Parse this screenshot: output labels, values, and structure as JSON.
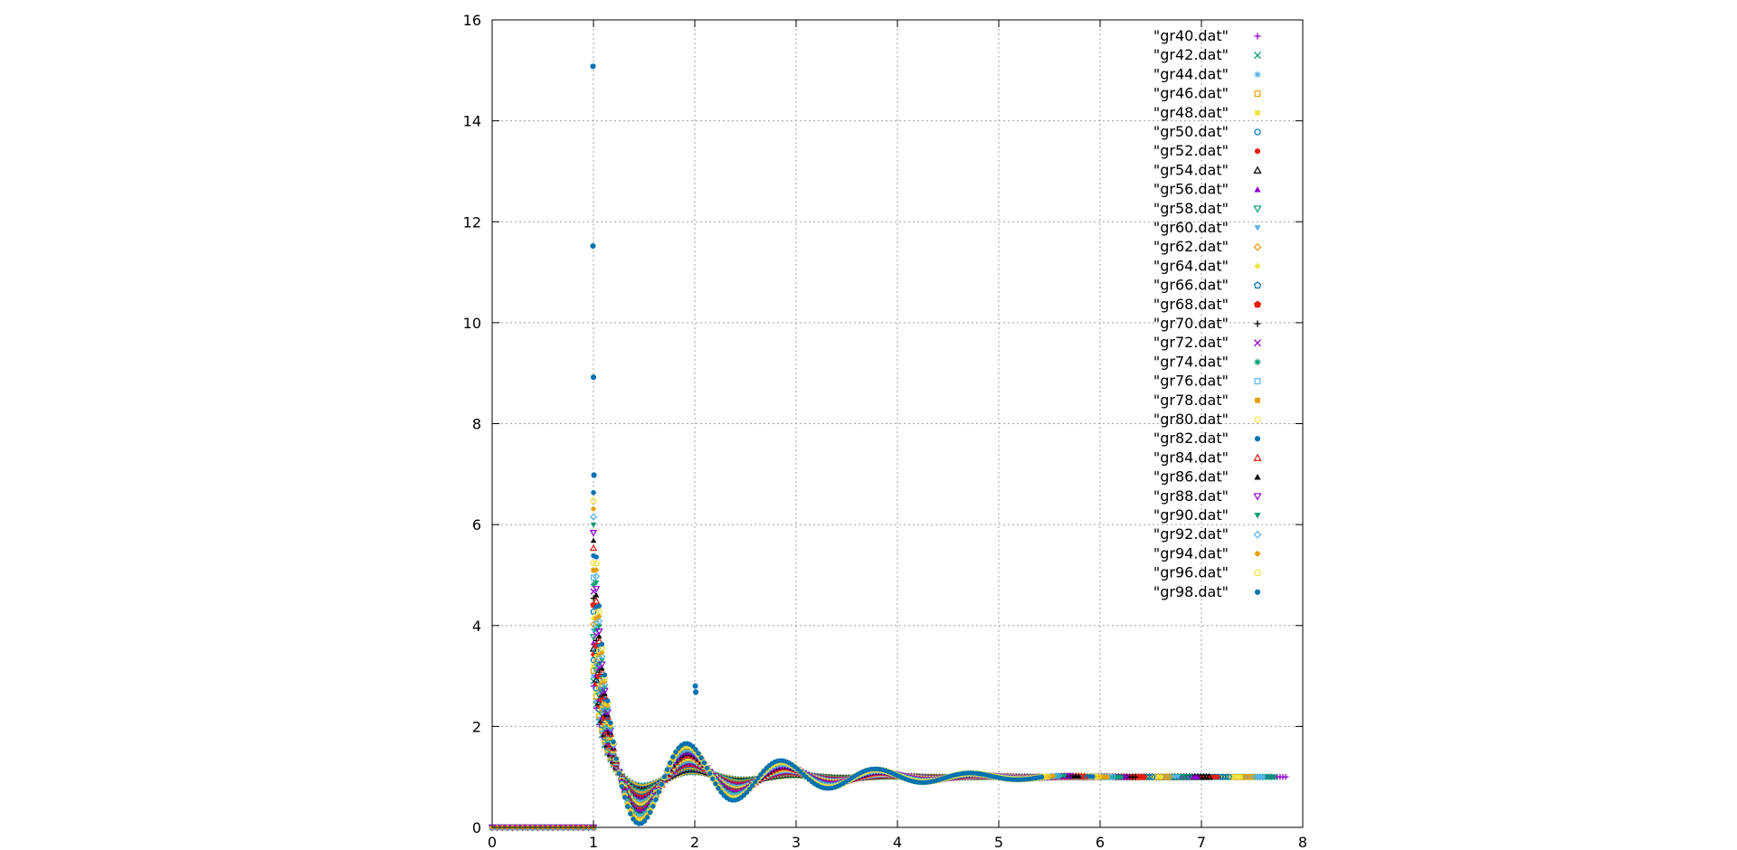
{
  "chart_data": {
    "type": "scatter",
    "title": "",
    "xlabel": "",
    "ylabel": "",
    "xlim": [
      0,
      8
    ],
    "ylim": [
      0,
      16
    ],
    "x_ticks": [
      0,
      1,
      2,
      3,
      4,
      5,
      6,
      7,
      8
    ],
    "y_ticks": [
      0,
      2,
      4,
      6,
      8,
      10,
      12,
      14,
      16
    ],
    "x_tick_labels": [
      "0",
      "1",
      "2",
      "3",
      "4",
      "5",
      "6",
      "7",
      "8"
    ],
    "y_tick_labels": [
      "0",
      "2",
      "4",
      "6",
      "8",
      "10",
      "12",
      "14",
      "16"
    ],
    "grid": true,
    "legend_position": "top-right",
    "model": {
      "description_omitted": true
    },
    "series": [
      {
        "name": "\"gr40.dat\"",
        "color": "#9400d3",
        "marker": "plus",
        "density": 0.4,
        "x_max": 7.85
      },
      {
        "name": "\"gr42.dat\"",
        "color": "#009e73",
        "marker": "cross",
        "density": 0.42,
        "x_max": 7.73
      },
      {
        "name": "\"gr44.dat\"",
        "color": "#56b4e9",
        "marker": "star",
        "density": 0.44,
        "x_max": 7.61
      },
      {
        "name": "\"gr46.dat\"",
        "color": "#e69f00",
        "marker": "square-open",
        "density": 0.46,
        "x_max": 7.5
      },
      {
        "name": "\"gr48.dat\"",
        "color": "#f0e442",
        "marker": "square-filled",
        "density": 0.48,
        "x_max": 7.39
      },
      {
        "name": "\"gr50.dat\"",
        "color": "#0072b2",
        "marker": "circle-open",
        "density": 0.5,
        "x_max": 7.28
      },
      {
        "name": "\"gr52.dat\"",
        "color": "#e51e10",
        "marker": "circle-filled",
        "density": 0.52,
        "x_max": 7.18
      },
      {
        "name": "\"gr54.dat\"",
        "color": "#000000",
        "marker": "triangle-up-open",
        "density": 0.54,
        "x_max": 7.08
      },
      {
        "name": "\"gr56.dat\"",
        "color": "#9400d3",
        "marker": "triangle-up-filled",
        "density": 0.56,
        "x_max": 6.98
      },
      {
        "name": "\"gr58.dat\"",
        "color": "#009e73",
        "marker": "triangle-down-open",
        "density": 0.58,
        "x_max": 6.88
      },
      {
        "name": "\"gr60.dat\"",
        "color": "#56b4e9",
        "marker": "triangle-down-filled",
        "density": 0.6,
        "x_max": 6.79
      },
      {
        "name": "\"gr62.dat\"",
        "color": "#e69f00",
        "marker": "diamond-open",
        "density": 0.62,
        "x_max": 6.7
      },
      {
        "name": "\"gr64.dat\"",
        "color": "#f0e442",
        "marker": "diamond-filled",
        "density": 0.64,
        "x_max": 6.61
      },
      {
        "name": "\"gr66.dat\"",
        "color": "#0072b2",
        "marker": "pentagon-open",
        "density": 0.66,
        "x_max": 6.53
      },
      {
        "name": "\"gr68.dat\"",
        "color": "#e51e10",
        "marker": "pentagon-filled",
        "density": 0.68,
        "x_max": 6.45
      },
      {
        "name": "\"gr70.dat\"",
        "color": "#000000",
        "marker": "plus",
        "density": 0.7,
        "x_max": 6.37
      },
      {
        "name": "\"gr72.dat\"",
        "color": "#9400d3",
        "marker": "cross",
        "density": 0.72,
        "x_max": 6.29
      },
      {
        "name": "\"gr74.dat\"",
        "color": "#009e73",
        "marker": "star",
        "density": 0.74,
        "x_max": 6.21
      },
      {
        "name": "\"gr76.dat\"",
        "color": "#56b4e9",
        "marker": "square-open",
        "density": 0.76,
        "x_max": 6.14
      },
      {
        "name": "\"gr78.dat\"",
        "color": "#e69f00",
        "marker": "square-filled",
        "density": 0.78,
        "x_max": 6.07
      },
      {
        "name": "\"gr80.dat\"",
        "color": "#f0e442",
        "marker": "circle-open",
        "density": 0.8,
        "x_max": 6.0
      },
      {
        "name": "\"gr82.dat\"",
        "color": "#0072b2",
        "marker": "circle-filled",
        "density": 0.82,
        "x_max": 5.93
      },
      {
        "name": "\"gr84.dat\"",
        "color": "#e51e10",
        "marker": "triangle-up-open",
        "density": 0.84,
        "x_max": 5.86
      },
      {
        "name": "\"gr86.dat\"",
        "color": "#000000",
        "marker": "triangle-up-filled",
        "density": 0.86,
        "x_max": 5.8
      },
      {
        "name": "\"gr88.dat\"",
        "color": "#9400d3",
        "marker": "triangle-down-open",
        "density": 0.88,
        "x_max": 5.73
      },
      {
        "name": "\"gr90.dat\"",
        "color": "#009e73",
        "marker": "triangle-down-filled",
        "density": 0.9,
        "x_max": 5.67
      },
      {
        "name": "\"gr92.dat\"",
        "color": "#56b4e9",
        "marker": "diamond-open",
        "density": 0.92,
        "x_max": 5.61
      },
      {
        "name": "\"gr94.dat\"",
        "color": "#e69f00",
        "marker": "diamond-filled",
        "density": 0.94,
        "x_max": 5.55
      },
      {
        "name": "\"gr96.dat\"",
        "color": "#f0e442",
        "marker": "pentagon-open",
        "density": 0.96,
        "x_max": 5.5
      },
      {
        "name": "\"gr98.dat\"",
        "color": "#0072b2",
        "marker": "circle-filled",
        "density": 0.98,
        "x_max": 5.44,
        "special_points": [
          {
            "x": 0.995,
            "y": 15.08
          },
          {
            "x": 0.995,
            "y": 11.52
          },
          {
            "x": 1.0,
            "y": 8.92
          },
          {
            "x": 1.005,
            "y": 6.98
          },
          {
            "x": 2.005,
            "y": 2.8
          },
          {
            "x": 2.01,
            "y": 2.68
          }
        ]
      }
    ],
    "curve_samples_x": [
      0,
      0.05,
      0.1,
      0.15,
      0.2,
      0.25,
      0.3,
      0.35,
      0.4,
      0.45,
      0.5,
      0.55,
      0.6,
      0.65,
      0.7,
      0.75,
      0.8,
      0.85,
      0.9,
      0.95,
      1.0
    ]
  }
}
